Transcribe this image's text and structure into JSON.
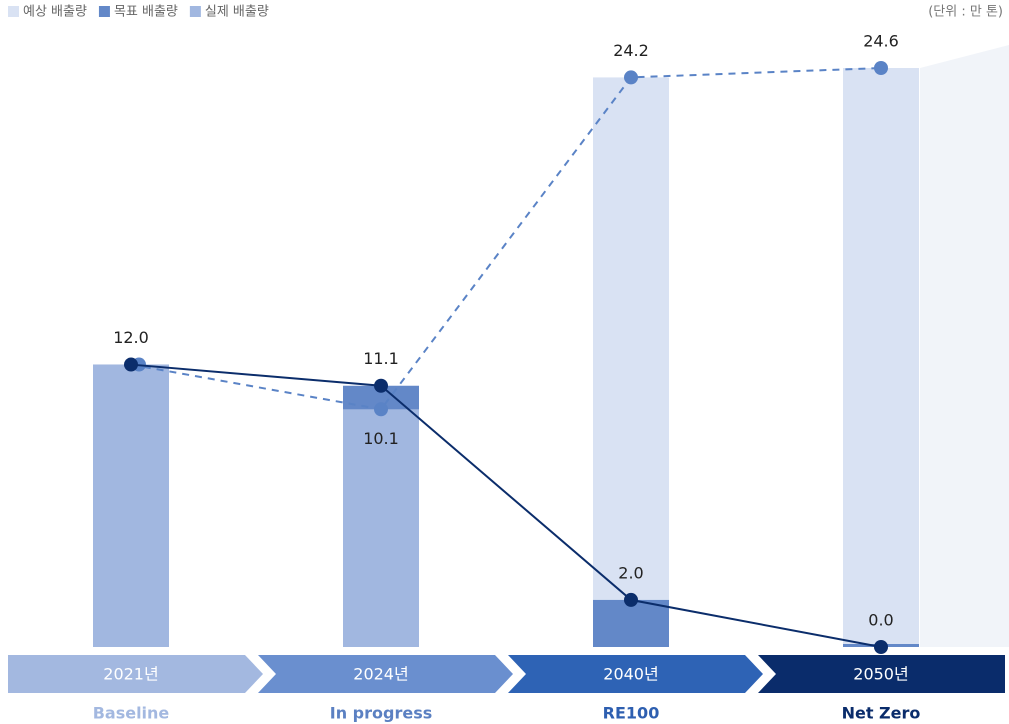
{
  "chart_data": {
    "type": "bar",
    "unit": "(단위 : 만 톤)",
    "categories": [
      "2021년",
      "2024년",
      "2040년",
      "2050년"
    ],
    "subcategories": [
      "Baseline",
      "In progress",
      "RE100",
      "Net Zero"
    ],
    "subcategory_colors": [
      "#a3b8e0",
      "#5b80c2",
      "#2e5fb0",
      "#0a2c6b"
    ],
    "band_colors": [
      "#a3b8e0",
      "#6a8fcf",
      "#2e63b5",
      "#0a2c6b"
    ],
    "series": [
      {
        "name": "예상 배출량",
        "color": "#d9e2f3",
        "values": [
          null,
          null,
          24.2,
          24.6
        ],
        "value_labels": [
          null,
          null,
          "24.2",
          "24.6"
        ]
      },
      {
        "name": "목표 배출량",
        "color": "#6388c8",
        "line_color": "#0b2d6b",
        "values": [
          12.0,
          11.1,
          2.0,
          0.0
        ],
        "value_labels": [
          null,
          "11.1",
          "2.0",
          "0.0"
        ]
      },
      {
        "name": "실제 배출량",
        "color": "#a1b7e0",
        "values": [
          12.0,
          10.1,
          null,
          null
        ],
        "value_labels": [
          "12.0",
          "10.1",
          null,
          null
        ]
      }
    ],
    "dashed_line_color": "#5a83c6",
    "ylim": [
      0,
      24.6
    ]
  }
}
